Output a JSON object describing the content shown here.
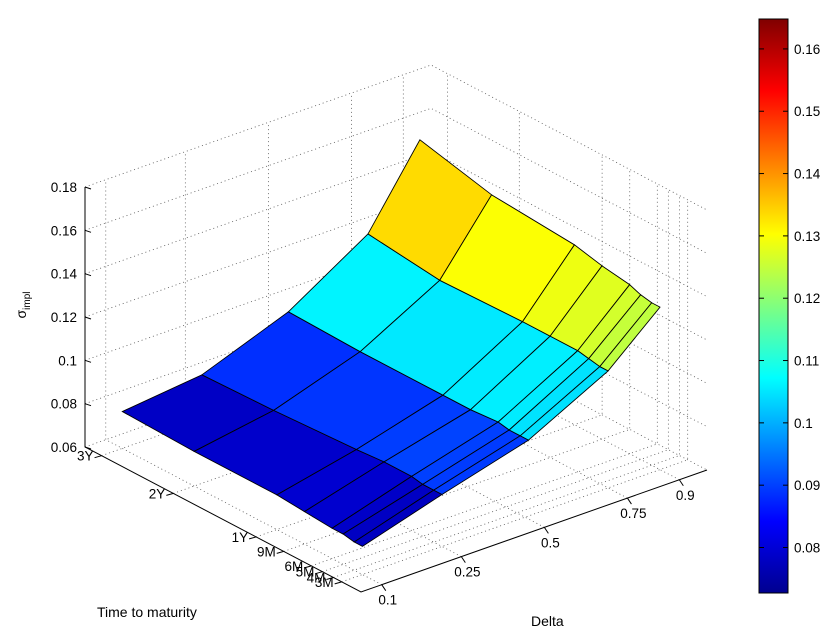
{
  "chart_data": {
    "type": "surface3d",
    "title": "",
    "xlabel": "Delta",
    "ylabel": "Time to maturity",
    "zlabel_base": "σ",
    "zlabel_sub": "impl",
    "delta_ticks": [
      "0.1",
      "0.25",
      "0.5",
      "0.75",
      "0.9"
    ],
    "maturity_ticks": [
      "3Y",
      "2Y",
      "1Y",
      "9M",
      "6M",
      "5M",
      "4M",
      "3M"
    ],
    "z_ticks": [
      "0.06",
      "0.08",
      "0.1",
      "0.12",
      "0.14",
      "0.16",
      "0.18"
    ],
    "zlim": [
      0.06,
      0.18
    ],
    "colorbar_ticks": [
      "0.08",
      "0.09",
      "0.1",
      "0.11",
      "0.12",
      "0.13",
      "0.14",
      "0.15",
      "0.16"
    ],
    "clim": [
      0.0727,
      0.1648
    ],
    "colormap": "jet",
    "grid": true,
    "surface_rows": [
      {
        "maturity": "3Y",
        "values": [
          0.077,
          0.081,
          0.096,
          0.119,
          0.154
        ]
      },
      {
        "maturity": "2Y",
        "values": [
          0.076,
          0.082,
          0.095,
          0.115,
          0.146
        ]
      },
      {
        "maturity": "1Y",
        "values": [
          0.076,
          0.084,
          0.095,
          0.116,
          0.143
        ]
      },
      {
        "maturity": "9M",
        "values": [
          0.075,
          0.085,
          0.095,
          0.116,
          0.14
        ]
      },
      {
        "maturity": "6M",
        "values": [
          0.074,
          0.085,
          0.096,
          0.116,
          0.138
        ]
      },
      {
        "maturity": "5M",
        "values": [
          0.074,
          0.084,
          0.095,
          0.115,
          0.136
        ]
      },
      {
        "maturity": "4M",
        "values": [
          0.073,
          0.084,
          0.095,
          0.114,
          0.135
        ]
      },
      {
        "maturity": "3M",
        "values": [
          0.073,
          0.084,
          0.095,
          0.114,
          0.135
        ]
      }
    ]
  }
}
